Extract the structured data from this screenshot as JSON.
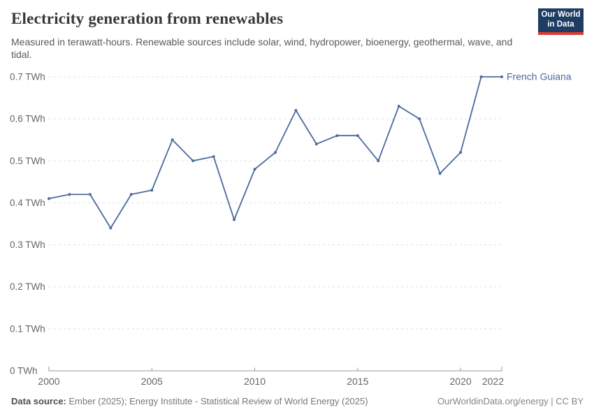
{
  "header": {
    "title": "Electricity generation from renewables",
    "subtitle_line1": "Measured in terawatt-hours. Renewable sources include solar, wind, hydropower, bioenergy, geothermal,",
    "subtitle_line2": "wave, and tidal.",
    "logo": {
      "line1": "Our World",
      "line2": "in Data",
      "bg": "#1d3d63",
      "accent": "#d93d32"
    }
  },
  "chart_data": {
    "type": "line",
    "title": "Electricity generation from renewables",
    "unit": "TWh",
    "x": [
      2000,
      2001,
      2002,
      2003,
      2004,
      2005,
      2006,
      2007,
      2008,
      2009,
      2010,
      2011,
      2012,
      2013,
      2014,
      2015,
      2016,
      2017,
      2018,
      2019,
      2020,
      2021,
      2022
    ],
    "series": [
      {
        "name": "French Guiana",
        "color": "#4C6A9C",
        "values": [
          0.41,
          0.42,
          0.42,
          0.34,
          0.42,
          0.43,
          0.55,
          0.5,
          0.51,
          0.36,
          0.48,
          0.52,
          0.62,
          0.54,
          0.56,
          0.56,
          0.5,
          0.63,
          0.6,
          0.47,
          0.52,
          0.7,
          0.7
        ]
      }
    ],
    "xlabel": "",
    "ylabel": "",
    "ylim": [
      0,
      0.7
    ],
    "yticks": [
      0,
      0.1,
      0.2,
      0.3,
      0.4,
      0.5,
      0.6,
      0.7
    ],
    "ytick_labels": [
      "0 TWh",
      "0.1 TWh",
      "0.2 TWh",
      "0.3 TWh",
      "0.4 TWh",
      "0.5 TWh",
      "0.6 TWh",
      "0.7 TWh"
    ],
    "xticks": [
      2000,
      2005,
      2010,
      2015,
      2020,
      2022
    ],
    "grid": "horizontal-dashed",
    "legend_position": "end-of-line-label"
  },
  "colors": {
    "line": "#4C6A9C",
    "gridline": "#e0e0e0",
    "axis": "#999999",
    "tick_text": "#666666",
    "entity_label": "#4C6A9C"
  },
  "footer": {
    "datasource_label": "Data source:",
    "datasource_text": " Ember (2025); Energy Institute - Statistical Review of World Energy (2025)",
    "attribution": "OurWorldinData.org/energy | CC BY"
  }
}
